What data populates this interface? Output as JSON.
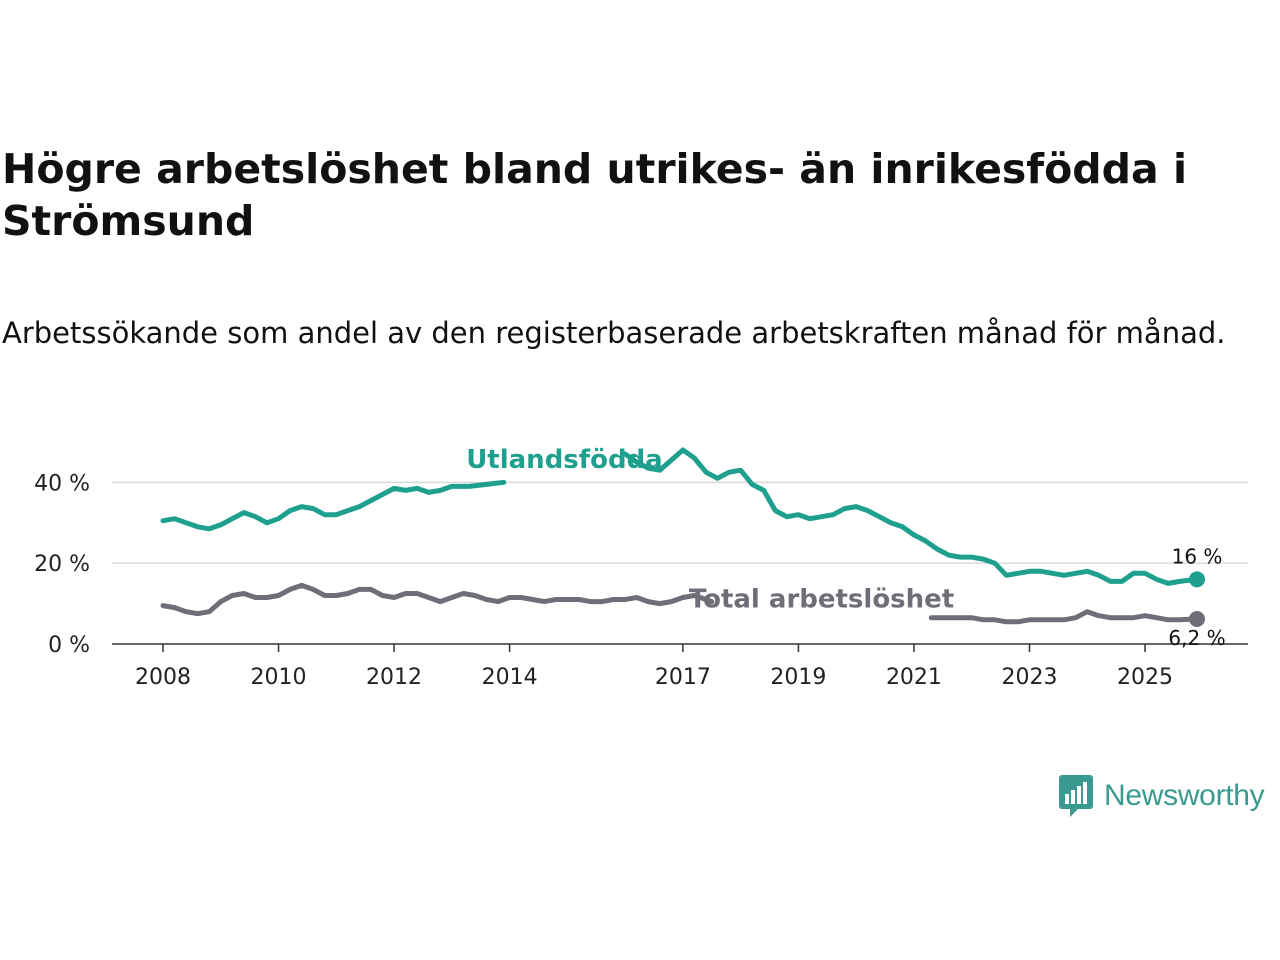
{
  "title": "Högre arbetslöshet bland utrikes- än inrikesfödda i Strömsund",
  "subtitle": "Arbetssökande som andel av den registerbaserade arbetskraften månad för månad.",
  "brand": {
    "name": "Newsworthy",
    "color": "#3a9a90"
  },
  "chart_data": {
    "type": "line",
    "title": "Högre arbetslöshet bland utrikes- än inrikesfödda i Strömsund",
    "xlabel": "",
    "ylabel": "",
    "xlim": [
      2008.0,
      2025.9
    ],
    "ylim": [
      0,
      48
    ],
    "grid": "horizontal",
    "y_ticks": [
      0,
      20,
      40
    ],
    "y_tick_labels": [
      "0 %",
      "20 %",
      "40 %"
    ],
    "x_ticks": [
      2008,
      2010,
      2012,
      2014,
      2017,
      2019,
      2021,
      2023,
      2025
    ],
    "x_tick_labels": [
      "2008",
      "2010",
      "2012",
      "2014",
      "2017",
      "2019",
      "2021",
      "2023",
      "2025"
    ],
    "series": [
      {
        "name": "Utlandsfödda",
        "color": "#1fa08e",
        "end_label": "16 %",
        "points": [
          [
            2008.0,
            30.5
          ],
          [
            2008.2,
            31.0
          ],
          [
            2008.4,
            30.0
          ],
          [
            2008.6,
            29.0
          ],
          [
            2008.8,
            28.5
          ],
          [
            2009.0,
            29.5
          ],
          [
            2009.2,
            31.0
          ],
          [
            2009.4,
            32.5
          ],
          [
            2009.6,
            31.5
          ],
          [
            2009.8,
            30.0
          ],
          [
            2010.0,
            31.0
          ],
          [
            2010.2,
            33.0
          ],
          [
            2010.4,
            34.0
          ],
          [
            2010.6,
            33.5
          ],
          [
            2010.8,
            32.0
          ],
          [
            2011.0,
            32.0
          ],
          [
            2011.2,
            33.0
          ],
          [
            2011.4,
            34.0
          ],
          [
            2011.6,
            35.5
          ],
          [
            2011.8,
            37.0
          ],
          [
            2012.0,
            38.5
          ],
          [
            2012.2,
            38.0
          ],
          [
            2012.4,
            38.5
          ],
          [
            2012.6,
            37.5
          ],
          [
            2012.8,
            38.0
          ],
          [
            2013.0,
            39.0
          ],
          [
            2013.3,
            39.0
          ],
          [
            2013.6,
            39.5
          ],
          [
            2013.9,
            40.0
          ],
          [
            2016.0,
            47.0
          ],
          [
            2016.2,
            45.0
          ],
          [
            2016.4,
            43.5
          ],
          [
            2016.6,
            43.0
          ],
          [
            2016.8,
            45.5
          ],
          [
            2017.0,
            48.0
          ],
          [
            2017.2,
            46.0
          ],
          [
            2017.4,
            42.5
          ],
          [
            2017.6,
            41.0
          ],
          [
            2017.8,
            42.5
          ],
          [
            2018.0,
            43.0
          ],
          [
            2018.2,
            39.5
          ],
          [
            2018.4,
            38.0
          ],
          [
            2018.6,
            33.0
          ],
          [
            2018.8,
            31.5
          ],
          [
            2019.0,
            32.0
          ],
          [
            2019.2,
            31.0
          ],
          [
            2019.4,
            31.5
          ],
          [
            2019.6,
            32.0
          ],
          [
            2019.8,
            33.5
          ],
          [
            2020.0,
            34.0
          ],
          [
            2020.2,
            33.0
          ],
          [
            2020.4,
            31.5
          ],
          [
            2020.6,
            30.0
          ],
          [
            2020.8,
            29.0
          ],
          [
            2021.0,
            27.0
          ],
          [
            2021.2,
            25.5
          ],
          [
            2021.4,
            23.5
          ],
          [
            2021.6,
            22.0
          ],
          [
            2021.8,
            21.5
          ],
          [
            2022.0,
            21.5
          ],
          [
            2022.2,
            21.0
          ],
          [
            2022.4,
            20.0
          ],
          [
            2022.6,
            17.0
          ],
          [
            2022.8,
            17.5
          ],
          [
            2023.0,
            18.0
          ],
          [
            2023.2,
            18.0
          ],
          [
            2023.4,
            17.5
          ],
          [
            2023.6,
            17.0
          ],
          [
            2023.8,
            17.5
          ],
          [
            2024.0,
            18.0
          ],
          [
            2024.2,
            17.0
          ],
          [
            2024.4,
            15.5
          ],
          [
            2024.6,
            15.5
          ],
          [
            2024.8,
            17.5
          ],
          [
            2025.0,
            17.5
          ],
          [
            2025.2,
            16.0
          ],
          [
            2025.4,
            15.0
          ],
          [
            2025.6,
            15.5
          ],
          [
            2025.9,
            16.0
          ]
        ]
      },
      {
        "name": "Total arbetslöshet",
        "color": "#6e6e78",
        "end_label": "6,2 %",
        "points": [
          [
            2008.0,
            9.5
          ],
          [
            2008.2,
            9.0
          ],
          [
            2008.4,
            8.0
          ],
          [
            2008.6,
            7.5
          ],
          [
            2008.8,
            8.0
          ],
          [
            2009.0,
            10.5
          ],
          [
            2009.2,
            12.0
          ],
          [
            2009.4,
            12.5
          ],
          [
            2009.6,
            11.5
          ],
          [
            2009.8,
            11.5
          ],
          [
            2010.0,
            12.0
          ],
          [
            2010.2,
            13.5
          ],
          [
            2010.4,
            14.5
          ],
          [
            2010.6,
            13.5
          ],
          [
            2010.8,
            12.0
          ],
          [
            2011.0,
            12.0
          ],
          [
            2011.2,
            12.5
          ],
          [
            2011.4,
            13.5
          ],
          [
            2011.6,
            13.5
          ],
          [
            2011.8,
            12.0
          ],
          [
            2012.0,
            11.5
          ],
          [
            2012.2,
            12.5
          ],
          [
            2012.4,
            12.5
          ],
          [
            2012.6,
            11.5
          ],
          [
            2012.8,
            10.5
          ],
          [
            2013.0,
            11.5
          ],
          [
            2013.2,
            12.5
          ],
          [
            2013.4,
            12.0
          ],
          [
            2013.6,
            11.0
          ],
          [
            2013.8,
            10.5
          ],
          [
            2014.0,
            11.5
          ],
          [
            2014.2,
            11.5
          ],
          [
            2014.4,
            11.0
          ],
          [
            2014.6,
            10.5
          ],
          [
            2014.8,
            11.0
          ],
          [
            2015.0,
            11.0
          ],
          [
            2015.2,
            11.0
          ],
          [
            2015.4,
            10.5
          ],
          [
            2015.6,
            10.5
          ],
          [
            2015.8,
            11.0
          ],
          [
            2016.0,
            11.0
          ],
          [
            2016.2,
            11.5
          ],
          [
            2016.4,
            10.5
          ],
          [
            2016.6,
            10.0
          ],
          [
            2016.8,
            10.5
          ],
          [
            2017.0,
            11.5
          ],
          [
            2017.2,
            12.0
          ],
          [
            2017.4,
            11.0
          ],
          [
            2017.5,
            10.5
          ],
          [
            2021.3,
            6.5
          ],
          [
            2021.6,
            6.5
          ],
          [
            2021.9,
            6.5
          ],
          [
            2022.0,
            6.5
          ],
          [
            2022.2,
            6.0
          ],
          [
            2022.4,
            6.0
          ],
          [
            2022.6,
            5.5
          ],
          [
            2022.8,
            5.5
          ],
          [
            2023.0,
            6.0
          ],
          [
            2023.2,
            6.0
          ],
          [
            2023.4,
            6.0
          ],
          [
            2023.6,
            6.0
          ],
          [
            2023.8,
            6.5
          ],
          [
            2024.0,
            8.0
          ],
          [
            2024.2,
            7.0
          ],
          [
            2024.4,
            6.5
          ],
          [
            2024.6,
            6.5
          ],
          [
            2024.8,
            6.5
          ],
          [
            2025.0,
            7.0
          ],
          [
            2025.2,
            6.5
          ],
          [
            2025.4,
            6.0
          ],
          [
            2025.6,
            6.0
          ],
          [
            2025.9,
            6.2
          ]
        ]
      }
    ]
  }
}
